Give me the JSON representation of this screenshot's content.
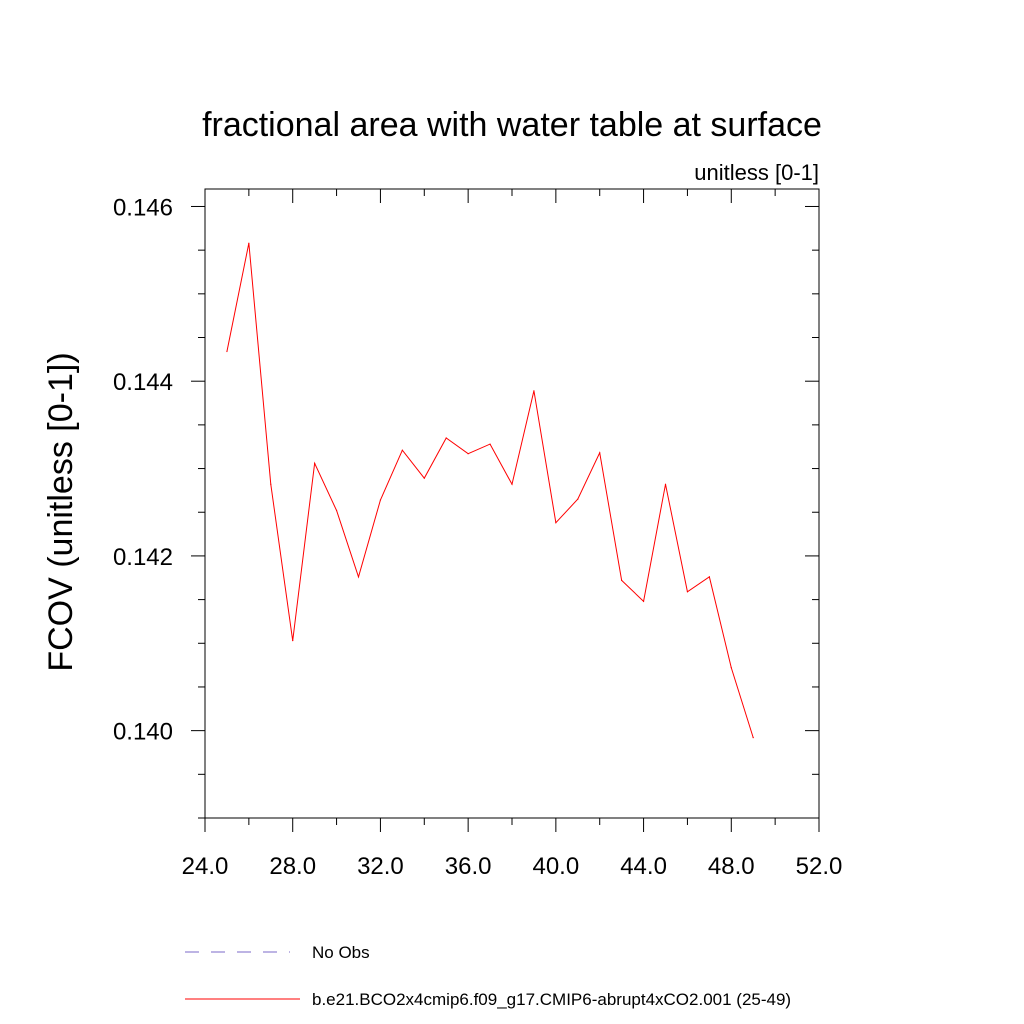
{
  "chart_data": {
    "type": "line",
    "title": "fractional area with water table at surface",
    "subtitle": "unitless [0-1]",
    "ylabel": "FCOV  (unitless [0-1])",
    "xlabel": "",
    "xlim": [
      24.0,
      52.0
    ],
    "ylim": [
      0.139,
      0.1462
    ],
    "x_ticks": [
      24.0,
      28.0,
      32.0,
      36.0,
      40.0,
      44.0,
      48.0,
      52.0
    ],
    "x_tick_labels": [
      "24.0",
      "28.0",
      "32.0",
      "36.0",
      "40.0",
      "44.0",
      "48.0",
      "52.0"
    ],
    "y_ticks": [
      0.14,
      0.142,
      0.144,
      0.146
    ],
    "y_tick_labels": [
      "0.140",
      "0.142",
      "0.144",
      "0.146"
    ],
    "y_minor_step": 0.0005,
    "x_minor_step": 2.0,
    "grid": false,
    "legend_position": "bottom",
    "series": [
      {
        "name": "No Obs",
        "color": "#7b68c8",
        "dash": "dashed",
        "x": [],
        "y": []
      },
      {
        "name": "b.e21.BCO2x4cmip6.f09_g17.CMIP6-abrupt4xCO2.001 (25-49)",
        "color": "#ff0000",
        "dash": "solid",
        "x": [
          25,
          26,
          27,
          28,
          29,
          30,
          31,
          32,
          33,
          34,
          35,
          36,
          37,
          38,
          39,
          40,
          41,
          42,
          43,
          44,
          45,
          46,
          47,
          48,
          49
        ],
        "y": [
          0.14434,
          0.14558,
          0.14282,
          0.14103,
          0.14306,
          0.14252,
          0.14176,
          0.14264,
          0.14321,
          0.14289,
          0.14335,
          0.14317,
          0.14328,
          0.14282,
          0.14389,
          0.14238,
          0.14265,
          0.14318,
          0.14172,
          0.14148,
          0.14282,
          0.14159,
          0.14176,
          0.14072,
          0.13992
        ]
      }
    ]
  }
}
